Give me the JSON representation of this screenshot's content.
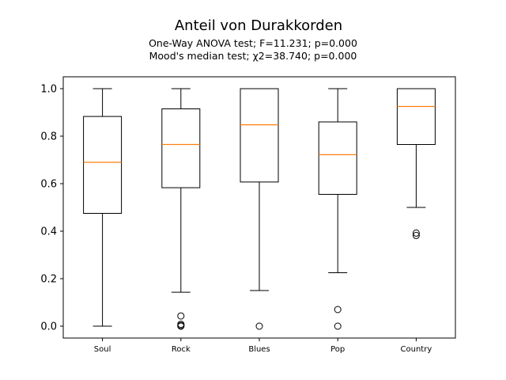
{
  "chart_data": {
    "type": "box",
    "title": "Anteil von Durakkorden",
    "subtitle_lines": [
      "One-Way ANOVA test; F=11.231; p=0.000",
      "Mood's median test; χ2=38.740; p=0.000"
    ],
    "xlabel": "",
    "ylabel": "",
    "ylim": [
      -0.05,
      1.05
    ],
    "yticks": [
      0.0,
      0.2,
      0.4,
      0.6,
      0.8,
      1.0
    ],
    "ytick_labels": [
      "0.0",
      "0.2",
      "0.4",
      "0.6",
      "0.8",
      "1.0"
    ],
    "grid": false,
    "categories": [
      "Soul",
      "Rock",
      "Blues",
      "Pop",
      "Country"
    ],
    "boxes": [
      {
        "category": "Soul",
        "whisker_low": 0.0,
        "q1": 0.475,
        "median": 0.69,
        "q3": 0.883,
        "whisker_high": 1.0,
        "outliers": []
      },
      {
        "category": "Rock",
        "whisker_low": 0.143,
        "q1": 0.583,
        "median": 0.765,
        "q3": 0.915,
        "whisker_high": 1.0,
        "outliers": [
          0.043,
          0.008,
          0.003,
          0.0
        ]
      },
      {
        "category": "Blues",
        "whisker_low": 0.15,
        "q1": 0.607,
        "median": 0.848,
        "q3": 1.0,
        "whisker_high": 1.0,
        "outliers": [
          0.0
        ]
      },
      {
        "category": "Pop",
        "whisker_low": 0.225,
        "q1": 0.555,
        "median": 0.722,
        "q3": 0.86,
        "whisker_high": 1.0,
        "outliers": [
          0.07,
          0.0
        ]
      },
      {
        "category": "Country",
        "whisker_low": 0.5,
        "q1": 0.765,
        "median": 0.925,
        "q3": 1.0,
        "whisker_high": 1.0,
        "outliers": [
          0.392,
          0.382
        ]
      }
    ],
    "colors": {
      "box": "#000000",
      "median": "#ff7f0e",
      "outlier": "#000000"
    }
  }
}
